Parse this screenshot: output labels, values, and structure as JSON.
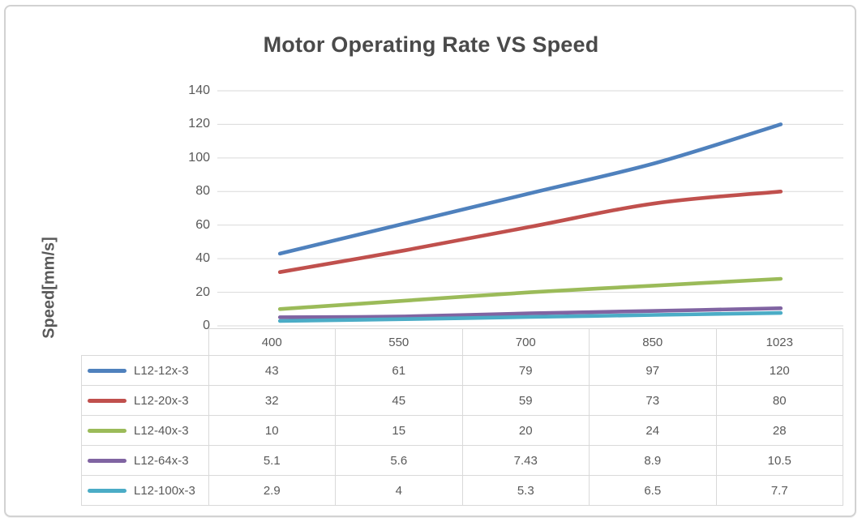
{
  "chart_data": {
    "type": "line",
    "title": "Motor Operating Rate VS Speed",
    "ylabel": "Speed[mm/s]",
    "xlabel": "",
    "categories": [
      "400",
      "550",
      "700",
      "850",
      "1023"
    ],
    "series": [
      {
        "name": "L12-12x-3",
        "color": "#4F81BD",
        "values": [
          43,
          61,
          79,
          97,
          120
        ]
      },
      {
        "name": "L12-20x-3",
        "color": "#C0504D",
        "values": [
          32,
          45,
          59,
          73,
          80
        ]
      },
      {
        "name": "L12-40x-3",
        "color": "#9BBB59",
        "values": [
          10,
          15,
          20,
          24,
          28
        ]
      },
      {
        "name": "L12-64x-3",
        "color": "#8064A2",
        "values": [
          5.1,
          5.6,
          7.43,
          8.9,
          10.5
        ]
      },
      {
        "name": "L12-100x-3",
        "color": "#4BACC6",
        "values": [
          2.9,
          4,
          5.3,
          6.5,
          7.7
        ]
      }
    ],
    "ylim": [
      0,
      140
    ],
    "yticks": [
      0,
      20,
      40,
      60,
      80,
      100,
      120,
      140
    ],
    "grid": true,
    "legend_position": "data-table-left-column",
    "colors": {
      "gridline": "#d9d9d9",
      "axis_text": "#595959",
      "title_text": "#4a4a4a",
      "table_border": "#d9d9d9",
      "frame_border": "#d2d2d2"
    }
  }
}
